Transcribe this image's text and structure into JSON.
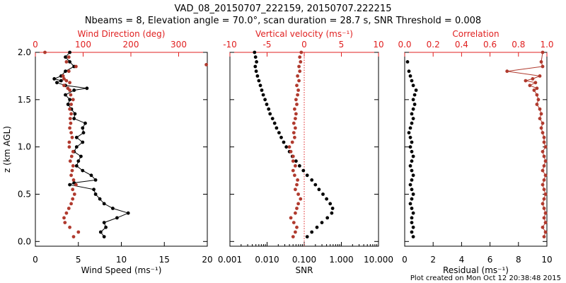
{
  "title": {
    "line1": "VAD_08_20150707_222159, 20150707.222215",
    "line2": "Nbeams = 8, Elevation angle = 70.0°, scan duration = 28.7 s, SNR Threshold = 0.008"
  },
  "footer": "Plot created on Mon Oct 12 20:38:48 2015",
  "colors": {
    "primary": "#000000",
    "secondary": "#b03a2e",
    "axis_red": "#e02020"
  },
  "chart_data": [
    {
      "type": "scatter",
      "panel": "wind",
      "xlabel": "Wind Speed (ms⁻¹)",
      "ylabel": "z (km AGL)",
      "xlim": [
        0,
        20
      ],
      "xticks": [
        0,
        5,
        10,
        15,
        20
      ],
      "ylim": [
        -0.05,
        2.0
      ],
      "yticks": [
        0.0,
        0.5,
        1.0,
        1.5,
        2.0
      ],
      "ytick_labels": [
        "0.0",
        "0.5",
        "1.0",
        "1.5",
        "2.0"
      ],
      "top_axis": {
        "label": "Wind Direction (deg)",
        "xlim": [
          0,
          360
        ],
        "ticks": [
          0,
          100,
          200,
          300
        ]
      },
      "series": [
        {
          "name": "Wind Speed",
          "color": "#000000",
          "axis": "bottom",
          "line": true,
          "z": [
            0.05,
            0.1,
            0.15,
            0.2,
            0.25,
            0.3,
            0.35,
            0.4,
            0.45,
            0.5,
            0.55,
            0.6,
            0.62,
            0.65,
            0.7,
            0.75,
            0.8,
            0.85,
            0.9,
            0.95,
            1.0,
            1.05,
            1.1,
            1.15,
            1.2,
            1.25,
            1.3,
            1.35,
            1.4,
            1.45,
            1.5,
            1.55,
            1.6,
            1.62,
            1.65,
            1.68,
            1.7,
            1.72,
            1.75,
            1.8,
            1.85,
            1.9,
            1.95,
            2.0
          ],
          "values": [
            8.0,
            7.6,
            8.2,
            8.0,
            9.5,
            10.8,
            9.0,
            8.0,
            7.5,
            7.0,
            6.8,
            4.0,
            4.5,
            7.0,
            6.5,
            5.5,
            4.8,
            5.0,
            5.3,
            4.5,
            4.8,
            5.5,
            4.8,
            5.6,
            5.5,
            5.8,
            4.5,
            4.6,
            4.2,
            3.8,
            4.0,
            3.5,
            4.5,
            6.0,
            3.5,
            2.5,
            3.0,
            2.2,
            3.0,
            3.5,
            4.5,
            4.0,
            3.5,
            4.0
          ]
        },
        {
          "name": "Wind Direction",
          "color": "#b03a2e",
          "axis": "top",
          "line": false,
          "z": [
            0.05,
            0.1,
            0.15,
            0.2,
            0.25,
            0.3,
            0.35,
            0.4,
            0.45,
            0.5,
            0.55,
            0.6,
            0.65,
            0.7,
            0.75,
            0.8,
            0.85,
            0.9,
            0.95,
            1.0,
            1.05,
            1.1,
            1.15,
            1.2,
            1.25,
            1.3,
            1.35,
            1.4,
            1.45,
            1.5,
            1.55,
            1.6,
            1.62,
            1.65,
            1.68,
            1.7,
            1.72,
            1.75,
            1.8,
            1.85,
            1.9,
            1.95,
            2.0
          ],
          "values": [
            80,
            90,
            72,
            62,
            60,
            65,
            70,
            75,
            78,
            82,
            78,
            85,
            80,
            75,
            77,
            79,
            73,
            76,
            79,
            71,
            71,
            77,
            75,
            72,
            74,
            73,
            75,
            72,
            75,
            79,
            74,
            72,
            68,
            60,
            72,
            65,
            60,
            58,
            70,
            85,
            65,
            70,
            20
          ]
        },
        {
          "name": "Wind Direction outlier",
          "color": "#b03a2e",
          "axis": "top",
          "line": false,
          "z": [
            1.87
          ],
          "values": [
            358
          ]
        }
      ]
    },
    {
      "type": "scatter",
      "panel": "vertical",
      "xlabel": "SNR",
      "xscale": "log",
      "xlim": [
        0.001,
        10
      ],
      "xticks": [
        0.001,
        0.01,
        0.1,
        1,
        10
      ],
      "xtick_labels": [
        "0.001",
        "0.010",
        "0.100",
        "1.000",
        "10.000"
      ],
      "ylim": [
        -0.05,
        2.0
      ],
      "top_axis": {
        "label": "Vertical velocity (ms⁻¹)",
        "xlim": [
          -10,
          10
        ],
        "ticks": [
          -10,
          -5,
          0,
          5,
          10
        ],
        "reference_line": 0
      },
      "series": [
        {
          "name": "SNR",
          "color": "#000000",
          "axis": "bottom",
          "line": false,
          "z": [
            0.05,
            0.1,
            0.15,
            0.2,
            0.25,
            0.3,
            0.35,
            0.4,
            0.45,
            0.5,
            0.55,
            0.6,
            0.65,
            0.7,
            0.75,
            0.8,
            0.85,
            0.9,
            0.95,
            1.0,
            1.05,
            1.1,
            1.15,
            1.2,
            1.25,
            1.3,
            1.35,
            1.4,
            1.45,
            1.5,
            1.55,
            1.6,
            1.65,
            1.7,
            1.75,
            1.8,
            1.85,
            1.9,
            1.95,
            2.0
          ],
          "values": [
            0.12,
            0.16,
            0.22,
            0.3,
            0.42,
            0.55,
            0.58,
            0.5,
            0.4,
            0.32,
            0.25,
            0.2,
            0.16,
            0.12,
            0.095,
            0.075,
            0.06,
            0.048,
            0.04,
            0.033,
            0.028,
            0.024,
            0.021,
            0.018,
            0.016,
            0.014,
            0.012,
            0.011,
            0.0098,
            0.0088,
            0.0079,
            0.0072,
            0.0066,
            0.006,
            0.0055,
            0.0051,
            0.0048,
            0.0052,
            0.0049,
            0.0046
          ]
        },
        {
          "name": "Vertical velocity",
          "color": "#b03a2e",
          "axis": "top",
          "line": false,
          "z": [
            0.05,
            0.1,
            0.15,
            0.2,
            0.25,
            0.3,
            0.35,
            0.4,
            0.45,
            0.5,
            0.55,
            0.6,
            0.65,
            0.7,
            0.75,
            0.8,
            0.85,
            0.9,
            0.95,
            1.0,
            1.05,
            1.1,
            1.15,
            1.2,
            1.25,
            1.3,
            1.35,
            1.4,
            1.45,
            1.5,
            1.55,
            1.6,
            1.65,
            1.7,
            1.75,
            1.8,
            1.85,
            1.9,
            1.95,
            2.0
          ],
          "values": [
            -1.5,
            -1.2,
            -1.0,
            -1.4,
            -1.8,
            -1.2,
            -1.0,
            -0.8,
            -0.5,
            -0.8,
            -1.2,
            -1.0,
            -0.9,
            -1.3,
            -1.5,
            -1.2,
            -1.5,
            -1.5,
            -1.8,
            -2.0,
            -1.6,
            -1.3,
            -1.4,
            -1.2,
            -1.4,
            -1.2,
            -1.1,
            -1.3,
            -1.0,
            -1.1,
            -0.9,
            -0.8,
            -1.0,
            -0.7,
            -0.9,
            -0.6,
            -0.7,
            -0.5,
            -0.6,
            -0.4
          ]
        }
      ]
    },
    {
      "type": "scatter",
      "panel": "residual",
      "xlabel": "Residual (ms⁻¹)",
      "xlim": [
        0,
        10
      ],
      "xticks": [
        0,
        2,
        4,
        6,
        8,
        10
      ],
      "ylim": [
        -0.05,
        2.0
      ],
      "top_axis": {
        "label": "Correlation",
        "xlim": [
          0,
          1
        ],
        "ticks": [
          0,
          0.2,
          0.4,
          0.6,
          0.8,
          1.0
        ],
        "tick_labels": [
          "0.0",
          "0.2",
          "0.4",
          "0.6",
          "0.8",
          "1.0"
        ]
      },
      "series": [
        {
          "name": "Residual",
          "color": "#000000",
          "axis": "bottom",
          "line": false,
          "z": [
            0.05,
            0.1,
            0.15,
            0.2,
            0.25,
            0.3,
            0.35,
            0.4,
            0.45,
            0.5,
            0.55,
            0.6,
            0.65,
            0.7,
            0.75,
            0.8,
            0.85,
            0.9,
            0.95,
            1.0,
            1.05,
            1.1,
            1.15,
            1.2,
            1.25,
            1.3,
            1.35,
            1.4,
            1.45,
            1.5,
            1.55,
            1.6,
            1.65,
            1.7,
            1.75,
            1.8,
            1.9
          ],
          "values": [
            0.6,
            0.5,
            0.6,
            0.5,
            0.5,
            0.6,
            0.5,
            0.4,
            0.5,
            0.6,
            0.5,
            0.4,
            0.5,
            0.6,
            0.5,
            0.4,
            0.5,
            0.6,
            0.5,
            0.4,
            0.5,
            0.4,
            0.3,
            0.4,
            0.5,
            0.6,
            0.5,
            0.6,
            0.7,
            0.6,
            0.7,
            0.8,
            0.6,
            0.5,
            0.4,
            0.3,
            0.2
          ]
        },
        {
          "name": "Correlation",
          "color": "#b03a2e",
          "axis": "top",
          "line": true,
          "z": [
            0.05,
            0.1,
            0.15,
            0.2,
            0.25,
            0.3,
            0.35,
            0.4,
            0.45,
            0.5,
            0.55,
            0.6,
            0.65,
            0.7,
            0.75,
            0.8,
            0.85,
            0.9,
            0.95,
            1.0,
            1.05,
            1.1,
            1.15,
            1.2,
            1.25,
            1.3,
            1.35,
            1.4,
            1.45,
            1.5,
            1.55,
            1.6,
            1.62,
            1.65,
            1.68,
            1.7,
            1.72,
            1.75,
            1.8,
            1.85,
            1.9,
            2.0
          ],
          "values": [
            0.98,
            0.99,
            0.97,
            0.99,
            0.98,
            0.99,
            0.98,
            0.97,
            0.98,
            0.99,
            0.98,
            0.97,
            0.98,
            0.99,
            0.97,
            0.98,
            0.99,
            0.98,
            0.97,
            0.99,
            0.98,
            0.98,
            0.97,
            0.96,
            0.97,
            0.95,
            0.96,
            0.95,
            0.93,
            0.94,
            0.93,
            0.91,
            0.93,
            0.88,
            0.92,
            0.85,
            0.9,
            0.95,
            0.72,
            0.97,
            0.96,
            0.97
          ]
        }
      ]
    }
  ]
}
